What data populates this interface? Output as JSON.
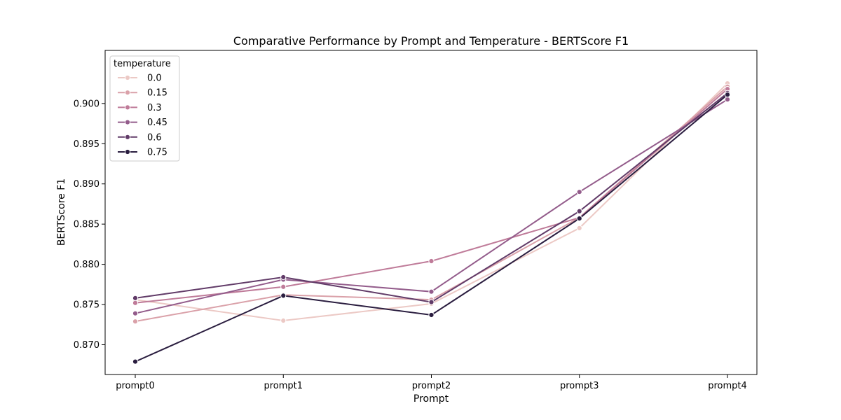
{
  "chart_data": {
    "type": "line",
    "title": "Comparative Performance by Prompt and Temperature - BERTScore F1",
    "xlabel": "Prompt",
    "ylabel": "BERTScore F1",
    "categories": [
      "prompt0",
      "prompt1",
      "prompt2",
      "prompt3",
      "prompt4"
    ],
    "ylim": [
      0.8663,
      0.9066
    ],
    "yticks": [
      "0.870",
      "0.875",
      "0.880",
      "0.885",
      "0.890",
      "0.895",
      "0.900"
    ],
    "grid": false,
    "legend": {
      "title": "temperature",
      "placement": "top-left"
    },
    "series": [
      {
        "name": "0.0",
        "color": "#ecc9c5",
        "values": [
          0.8756,
          0.873,
          0.8751,
          0.8845,
          0.9025
        ]
      },
      {
        "name": "0.15",
        "color": "#daa1a9",
        "values": [
          0.8729,
          0.8762,
          0.8756,
          0.8858,
          0.9021
        ]
      },
      {
        "name": "0.3",
        "color": "#bf7b99",
        "values": [
          0.8752,
          0.8772,
          0.8804,
          0.8858,
          0.9018
        ]
      },
      {
        "name": "0.45",
        "color": "#935c8b",
        "values": [
          0.8739,
          0.8781,
          0.8766,
          0.889,
          0.9005
        ]
      },
      {
        "name": "0.6",
        "color": "#613b68",
        "values": [
          0.8758,
          0.8784,
          0.8753,
          0.8866,
          0.9013
        ]
      },
      {
        "name": "0.75",
        "color": "#2a1d3f",
        "values": [
          0.8679,
          0.8761,
          0.8737,
          0.8857,
          0.9011
        ]
      }
    ]
  }
}
